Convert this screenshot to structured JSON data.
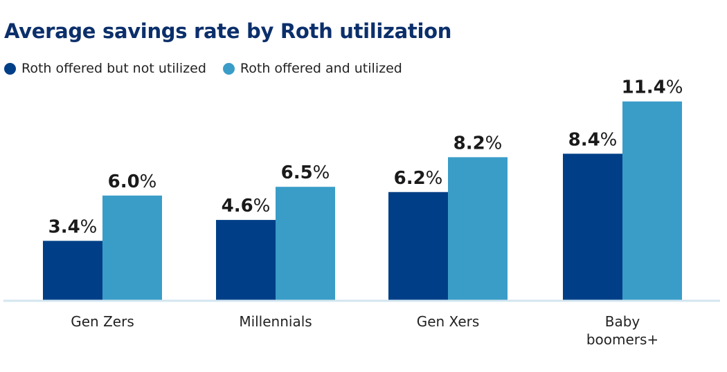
{
  "chart_data": {
    "type": "bar",
    "title": "Average savings rate by Roth utilization",
    "categories": [
      "Gen Zers",
      "Millennials",
      "Gen Xers",
      "Baby boomers+"
    ],
    "series": [
      {
        "name": "Roth offered but not utilized",
        "values": [
          3.4,
          4.6,
          6.2,
          8.4
        ],
        "color": "#003f87"
      },
      {
        "name": "Roth offered and utilized",
        "values": [
          6.0,
          6.5,
          8.2,
          11.4
        ],
        "color": "#3a9dc8"
      }
    ],
    "value_suffix": "%",
    "ylim": [
      0,
      12
    ],
    "grid": false,
    "legend": "top-left",
    "axis_color": "#d3e6f0"
  }
}
